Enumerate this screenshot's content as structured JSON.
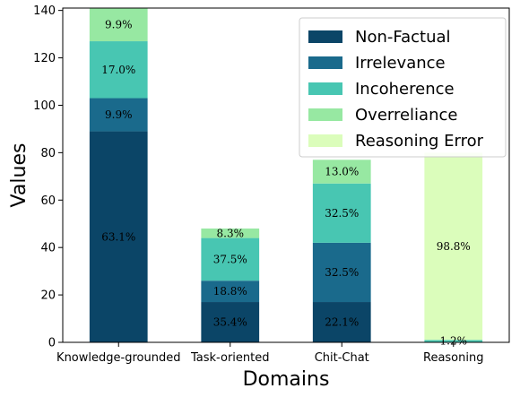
{
  "chart_data": {
    "type": "bar",
    "stacked": true,
    "title": "",
    "xlabel": "Domains",
    "ylabel": "Values",
    "ylim": [
      0,
      141
    ],
    "yticks": [
      0,
      20,
      40,
      60,
      80,
      100,
      120,
      140
    ],
    "grid": false,
    "legend_position": "top-right",
    "categories": [
      "Knowledge-grounded",
      "Task-oriented",
      "Chit-Chat",
      "Reasoning"
    ],
    "series": [
      {
        "name": "Non-Factual",
        "color": "#0b4567",
        "values": [
          89,
          17,
          17,
          0
        ],
        "labels": [
          "63.1%",
          "35.4%",
          "22.1%",
          ""
        ]
      },
      {
        "name": "Irrelevance",
        "color": "#1a6a8c",
        "values": [
          14,
          9,
          25,
          0
        ],
        "labels": [
          "9.9%",
          "18.8%",
          "32.5%",
          ""
        ]
      },
      {
        "name": "Incoherence",
        "color": "#48c6b2",
        "values": [
          24,
          18,
          25,
          1
        ],
        "labels": [
          "17.0%",
          "37.5%",
          "32.5%",
          "1.2%"
        ]
      },
      {
        "name": "Overreliance",
        "color": "#97e8a2",
        "values": [
          14,
          4,
          10,
          0
        ],
        "labels": [
          "9.9%",
          "8.3%",
          "13.0%",
          ""
        ]
      },
      {
        "name": "Reasoning Error",
        "color": "#dbfdbb",
        "values": [
          0,
          0,
          0,
          79
        ],
        "labels": [
          "",
          "",
          "",
          "98.8%"
        ]
      }
    ]
  }
}
